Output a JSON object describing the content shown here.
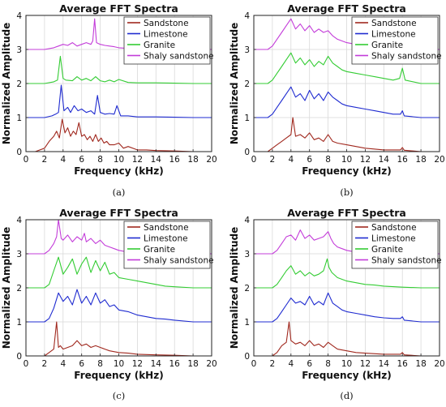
{
  "chart_data": [
    {
      "type": "line",
      "panel_label": "(a)",
      "title": "Average FFT Spectra",
      "xlabel": "Frequency (kHz)",
      "ylabel": "Normalized Amplitude",
      "xlim": [
        0,
        20
      ],
      "ylim": [
        0,
        4
      ],
      "xticks": [
        "0",
        "2",
        "4",
        "6",
        "8",
        "10",
        "12",
        "14",
        "16",
        "18",
        "20"
      ],
      "yticks": [
        "0",
        "1",
        "2",
        "3",
        "4"
      ],
      "grid": true,
      "legend_position": "top-right",
      "series": [
        {
          "name": "Sandstone",
          "color": "#a0281e",
          "baseline": 0,
          "x": [
            0,
            1,
            2,
            2.5,
            3,
            3.3,
            3.6,
            3.9,
            4.2,
            4.5,
            4.8,
            5.1,
            5.4,
            5.7,
            6,
            6.3,
            6.6,
            6.9,
            7.2,
            7.5,
            7.8,
            8.1,
            8.4,
            8.7,
            9,
            9.5,
            10,
            10.5,
            11,
            12,
            13,
            14,
            16,
            18,
            20
          ],
          "y": [
            0,
            0,
            0.1,
            0.3,
            0.45,
            0.6,
            0.4,
            0.95,
            0.55,
            0.7,
            0.45,
            0.6,
            0.5,
            0.85,
            0.45,
            0.5,
            0.35,
            0.45,
            0.3,
            0.5,
            0.3,
            0.4,
            0.25,
            0.3,
            0.2,
            0.2,
            0.25,
            0.1,
            0.15,
            0.05,
            0.05,
            0.03,
            0.02,
            0,
            0
          ]
        },
        {
          "name": "Limestone",
          "color": "#1f2bd0",
          "baseline": 1,
          "x": [
            0,
            2,
            2.8,
            3.2,
            3.5,
            3.8,
            4.1,
            4.5,
            4.8,
            5.2,
            5.6,
            6,
            6.5,
            7,
            7.4,
            7.7,
            8,
            8.5,
            9,
            9.5,
            9.8,
            10.2,
            11,
            12,
            13,
            14,
            16,
            18,
            20
          ],
          "y": [
            1,
            1,
            1.05,
            1.1,
            1.15,
            1.95,
            1.2,
            1.3,
            1.15,
            1.35,
            1.2,
            1.25,
            1.15,
            1.2,
            1.1,
            1.65,
            1.15,
            1.1,
            1.12,
            1.1,
            1.35,
            1.05,
            1.05,
            1.02,
            1.02,
            1.02,
            1.01,
            1,
            1
          ]
        },
        {
          "name": "Granite",
          "color": "#33cc33",
          "baseline": 2,
          "x": [
            0,
            2,
            3,
            3.4,
            3.7,
            4,
            4.3,
            5,
            5.5,
            6,
            6.5,
            7,
            7.5,
            8,
            8.5,
            9,
            9.5,
            10,
            11,
            12,
            14,
            16,
            18,
            20
          ],
          "y": [
            2,
            2,
            2.05,
            2.1,
            2.8,
            2.15,
            2.1,
            2.08,
            2.2,
            2.1,
            2.15,
            2.08,
            2.2,
            2.08,
            2.05,
            2.1,
            2.05,
            2.12,
            2.03,
            2.02,
            2.02,
            2.01,
            2,
            2
          ]
        },
        {
          "name": "Shaly sandstone",
          "color": "#c33cd9",
          "baseline": 3,
          "x": [
            0,
            2,
            3,
            3.5,
            4,
            4.5,
            5,
            5.5,
            6,
            6.5,
            7,
            7.2,
            7.4,
            7.6,
            8,
            8.5,
            9,
            9.5,
            10,
            11,
            12,
            14,
            16,
            18,
            20
          ],
          "y": [
            3,
            3,
            3.05,
            3.1,
            3.15,
            3.12,
            3.2,
            3.1,
            3.15,
            3.2,
            3.15,
            3.25,
            3.9,
            3.2,
            3.15,
            3.12,
            3.1,
            3.08,
            3.05,
            3.03,
            3.02,
            3.02,
            3.01,
            3,
            3
          ]
        }
      ]
    },
    {
      "type": "line",
      "panel_label": "(b)",
      "title": "Average FFT Spectra",
      "xlabel": "Frequency (kHz)",
      "ylabel": "Normalized Amplitude",
      "xlim": [
        0,
        20
      ],
      "ylim": [
        0,
        4
      ],
      "xticks": [
        "0",
        "2",
        "4",
        "6",
        "8",
        "10",
        "12",
        "14",
        "16",
        "18",
        "20"
      ],
      "yticks": [
        "0",
        "1",
        "2",
        "3",
        "4"
      ],
      "grid": true,
      "legend_position": "top-right",
      "series": [
        {
          "name": "Sandstone",
          "color": "#a0281e",
          "baseline": 0,
          "x": [
            0,
            1.5,
            2,
            2.5,
            3,
            3.5,
            4,
            4.2,
            4.5,
            5,
            5.5,
            6,
            6.5,
            7,
            7.5,
            8,
            8.5,
            9,
            10,
            11,
            12,
            14,
            15.8,
            16,
            16.2,
            18,
            20
          ],
          "y": [
            0,
            0,
            0.1,
            0.2,
            0.3,
            0.4,
            0.5,
            1.0,
            0.45,
            0.5,
            0.4,
            0.55,
            0.35,
            0.4,
            0.3,
            0.5,
            0.3,
            0.25,
            0.2,
            0.15,
            0.1,
            0.05,
            0.05,
            0.12,
            0.04,
            0,
            0
          ]
        },
        {
          "name": "Limestone",
          "color": "#1f2bd0",
          "baseline": 1,
          "x": [
            0,
            1.5,
            2,
            2.5,
            3,
            3.5,
            4,
            4.5,
            5,
            5.5,
            6,
            6.5,
            7,
            7.5,
            8,
            8.5,
            9,
            9.5,
            10,
            11,
            12,
            13,
            14,
            15,
            15.8,
            16,
            16.2,
            18,
            20
          ],
          "y": [
            1,
            1,
            1.1,
            1.3,
            1.5,
            1.7,
            1.9,
            1.6,
            1.7,
            1.5,
            1.8,
            1.55,
            1.7,
            1.5,
            1.75,
            1.6,
            1.5,
            1.4,
            1.35,
            1.3,
            1.25,
            1.2,
            1.15,
            1.1,
            1.1,
            1.2,
            1.05,
            1,
            1
          ]
        },
        {
          "name": "Granite",
          "color": "#33cc33",
          "baseline": 2,
          "x": [
            0,
            1.5,
            2,
            2.5,
            3,
            3.5,
            4,
            4.5,
            5,
            5.5,
            6,
            6.5,
            7,
            7.5,
            8,
            8.5,
            9,
            9.5,
            10,
            11,
            12,
            13,
            14,
            15,
            15.7,
            16,
            16.3,
            18,
            20
          ],
          "y": [
            2,
            2,
            2.1,
            2.3,
            2.5,
            2.7,
            2.9,
            2.6,
            2.75,
            2.55,
            2.7,
            2.5,
            2.65,
            2.55,
            2.8,
            2.6,
            2.5,
            2.4,
            2.35,
            2.3,
            2.25,
            2.2,
            2.15,
            2.1,
            2.15,
            2.45,
            2.1,
            2,
            2
          ]
        },
        {
          "name": "Shaly sandstone",
          "color": "#c33cd9",
          "baseline": 3,
          "x": [
            0,
            1.5,
            2,
            2.5,
            3,
            3.5,
            4,
            4.5,
            5,
            5.5,
            6,
            6.5,
            7,
            7.5,
            8,
            8.5,
            9,
            9.5,
            10,
            11,
            12,
            14,
            16,
            18,
            20
          ],
          "y": [
            3,
            3,
            3.1,
            3.3,
            3.5,
            3.7,
            3.9,
            3.6,
            3.75,
            3.55,
            3.7,
            3.5,
            3.6,
            3.5,
            3.55,
            3.4,
            3.3,
            3.25,
            3.2,
            3.15,
            3.1,
            3.05,
            3.02,
            3,
            3
          ]
        }
      ]
    },
    {
      "type": "line",
      "panel_label": "(c)",
      "title": "Average FFT Spectra",
      "xlabel": "Frequency (kHz)",
      "ylabel": "Normalized Amplitude",
      "xlim": [
        0,
        20
      ],
      "ylim": [
        0,
        4
      ],
      "xticks": [
        "0",
        "2",
        "4",
        "6",
        "8",
        "10",
        "12",
        "14",
        "16",
        "18",
        "20"
      ],
      "yticks": [
        "0",
        "1",
        "2",
        "3",
        "4"
      ],
      "grid": true,
      "legend_position": "top-right",
      "series": [
        {
          "name": "Sandstone",
          "color": "#a0281e",
          "baseline": 0,
          "x": [
            0,
            2,
            2.5,
            3,
            3.3,
            3.5,
            3.7,
            4,
            4.5,
            5,
            5.5,
            6,
            6.5,
            7,
            7.5,
            8,
            8.5,
            9,
            10,
            11,
            12,
            14,
            16,
            18,
            20
          ],
          "y": [
            0,
            0,
            0.1,
            0.2,
            1.0,
            0.25,
            0.3,
            0.2,
            0.25,
            0.3,
            0.45,
            0.3,
            0.35,
            0.25,
            0.3,
            0.25,
            0.2,
            0.15,
            0.1,
            0.08,
            0.05,
            0.03,
            0.02,
            0,
            0
          ]
        },
        {
          "name": "Limestone",
          "color": "#1f2bd0",
          "baseline": 1,
          "x": [
            0,
            2,
            2.5,
            3,
            3.5,
            4,
            4.5,
            5,
            5.5,
            6,
            6.5,
            7,
            7.5,
            8,
            8.5,
            9,
            9.5,
            10,
            11,
            12,
            13,
            14,
            15,
            16,
            18,
            20
          ],
          "y": [
            1,
            1,
            1.1,
            1.4,
            1.85,
            1.6,
            1.75,
            1.5,
            1.95,
            1.55,
            1.75,
            1.5,
            1.85,
            1.55,
            1.65,
            1.45,
            1.5,
            1.35,
            1.3,
            1.2,
            1.15,
            1.1,
            1.08,
            1.05,
            1,
            1
          ]
        },
        {
          "name": "Granite",
          "color": "#33cc33",
          "baseline": 2,
          "x": [
            0,
            2,
            2.5,
            3,
            3.5,
            4,
            4.5,
            5,
            5.5,
            6,
            6.5,
            7,
            7.5,
            8,
            8.5,
            9,
            9.5,
            10,
            11,
            12,
            13,
            14,
            15,
            16,
            18,
            20
          ],
          "y": [
            2,
            2,
            2.1,
            2.5,
            2.9,
            2.4,
            2.6,
            2.85,
            2.4,
            2.7,
            2.9,
            2.45,
            2.8,
            2.5,
            2.75,
            2.4,
            2.45,
            2.3,
            2.25,
            2.2,
            2.15,
            2.1,
            2.05,
            2.03,
            2,
            2
          ]
        },
        {
          "name": "Shaly sandstone",
          "color": "#c33cd9",
          "baseline": 3,
          "x": [
            0,
            2,
            2.5,
            3,
            3.3,
            3.5,
            3.8,
            4,
            4.5,
            5,
            5.5,
            6,
            6.3,
            6.5,
            7,
            7.5,
            8,
            8.5,
            9,
            9.5,
            10,
            11,
            12,
            14,
            16,
            18,
            20
          ],
          "y": [
            3,
            3,
            3.1,
            3.3,
            3.5,
            4.0,
            3.45,
            3.4,
            3.55,
            3.35,
            3.5,
            3.4,
            3.6,
            3.35,
            3.45,
            3.3,
            3.4,
            3.25,
            3.2,
            3.15,
            3.1,
            3.05,
            3.03,
            3.02,
            3.01,
            3,
            3
          ]
        }
      ]
    },
    {
      "type": "line",
      "panel_label": "(d)",
      "title": "Average FFT Spectra",
      "xlabel": "Frequency (kHz)",
      "ylabel": "Normalized Amplitude",
      "xlim": [
        0,
        20
      ],
      "ylim": [
        0,
        4
      ],
      "xticks": [
        "0",
        "2",
        "4",
        "6",
        "8",
        "10",
        "12",
        "14",
        "16",
        "18",
        "20"
      ],
      "yticks": [
        "0",
        "1",
        "2",
        "3",
        "4"
      ],
      "grid": true,
      "legend_position": "top-right",
      "series": [
        {
          "name": "Sandstone",
          "color": "#a0281e",
          "baseline": 0,
          "x": [
            0,
            2,
            2.5,
            3,
            3.5,
            3.8,
            4,
            4.5,
            5,
            5.5,
            6,
            6.5,
            7,
            7.5,
            8,
            8.5,
            9,
            10,
            11,
            12,
            14,
            15.8,
            16,
            16.2,
            18,
            20
          ],
          "y": [
            0,
            0,
            0.1,
            0.3,
            0.4,
            1.0,
            0.45,
            0.35,
            0.4,
            0.3,
            0.45,
            0.3,
            0.35,
            0.25,
            0.4,
            0.3,
            0.2,
            0.15,
            0.1,
            0.08,
            0.05,
            0.05,
            0.1,
            0.03,
            0,
            0
          ]
        },
        {
          "name": "Limestone",
          "color": "#1f2bd0",
          "baseline": 1,
          "x": [
            0,
            2,
            2.5,
            3,
            3.5,
            4,
            4.5,
            5,
            5.5,
            6,
            6.5,
            7,
            7.5,
            8,
            8.5,
            9,
            9.5,
            10,
            11,
            12,
            13,
            14,
            15,
            15.8,
            16,
            16.2,
            18,
            20
          ],
          "y": [
            1,
            1,
            1.1,
            1.3,
            1.5,
            1.7,
            1.55,
            1.6,
            1.5,
            1.75,
            1.5,
            1.6,
            1.5,
            1.85,
            1.55,
            1.45,
            1.35,
            1.3,
            1.25,
            1.2,
            1.15,
            1.12,
            1.1,
            1.1,
            1.15,
            1.05,
            1,
            1
          ]
        },
        {
          "name": "Granite",
          "color": "#33cc33",
          "baseline": 2,
          "x": [
            0,
            2,
            2.5,
            3,
            3.5,
            4,
            4.5,
            5,
            5.5,
            6,
            6.5,
            7,
            7.5,
            7.9,
            8.1,
            8.4,
            9,
            9.5,
            10,
            11,
            12,
            13,
            14,
            16,
            18,
            20
          ],
          "y": [
            2,
            2,
            2.1,
            2.3,
            2.5,
            2.65,
            2.4,
            2.5,
            2.35,
            2.45,
            2.35,
            2.4,
            2.5,
            2.85,
            2.6,
            2.45,
            2.3,
            2.25,
            2.2,
            2.15,
            2.1,
            2.08,
            2.05,
            2.02,
            2,
            2
          ]
        },
        {
          "name": "Shaly sandstone",
          "color": "#c33cd9",
          "baseline": 3,
          "x": [
            0,
            2,
            2.5,
            3,
            3.5,
            4,
            4.5,
            5,
            5.5,
            6,
            6.5,
            7,
            7.5,
            8,
            8.3,
            8.6,
            9,
            9.5,
            10,
            11,
            12,
            14,
            16,
            18,
            20
          ],
          "y": [
            3,
            3,
            3.1,
            3.3,
            3.5,
            3.55,
            3.4,
            3.7,
            3.45,
            3.55,
            3.4,
            3.45,
            3.5,
            3.65,
            3.45,
            3.3,
            3.2,
            3.15,
            3.1,
            3.05,
            3.03,
            3.02,
            3.01,
            3,
            3
          ]
        }
      ]
    }
  ]
}
